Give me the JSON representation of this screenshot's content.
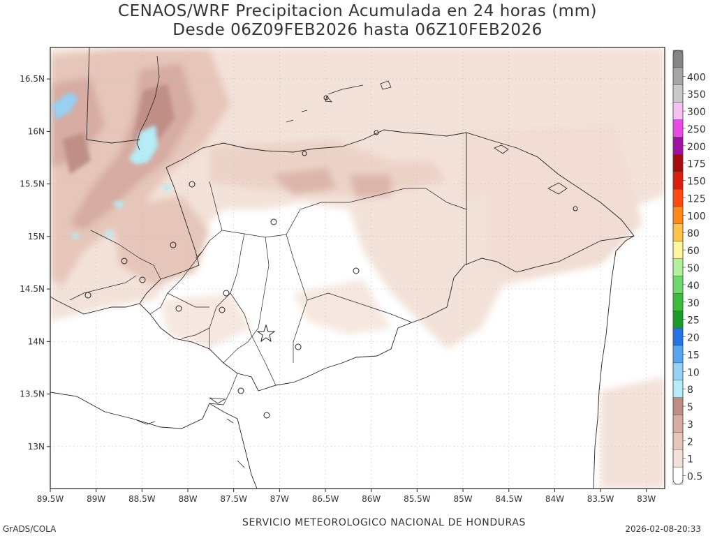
{
  "header": {
    "title_line1": "CENAOS/WRF Precipitacion Acumulada en 24 horas (mm)",
    "title_line2": "Desde 06Z09FEB2026 hasta 06Z10FEB2026"
  },
  "footer": {
    "left": "GrADS/COLA",
    "center": "SERVICIO METEOROLOGICO NACIONAL DE HONDURAS",
    "right": "2026-02-08-20:33"
  },
  "chart_data": {
    "type": "heatmap",
    "title": "CENAOS/WRF Precipitacion Acumulada en 24 horas (mm)",
    "subtitle": "Desde 06Z09FEB2026 hasta 06Z10FEB2026",
    "xlim": [
      -89.5,
      -82.8
    ],
    "ylim": [
      12.6,
      16.8
    ],
    "x_ticks": [
      "89.5W",
      "89W",
      "88.5W",
      "88W",
      "87.5W",
      "87W",
      "86.5W",
      "86W",
      "85.5W",
      "85W",
      "84.5W",
      "84W",
      "83.5W",
      "83W"
    ],
    "y_ticks": [
      "13N",
      "13.5N",
      "14N",
      "14.5N",
      "15N",
      "15.5N",
      "16N",
      "16.5N"
    ],
    "grid": true,
    "legend_position": "right",
    "colorbar": [
      {
        "value": "0.5",
        "color": "#ffffff"
      },
      {
        "value": "1",
        "color": "#f3e2d9"
      },
      {
        "value": "2",
        "color": "#e6c6ba"
      },
      {
        "value": "3",
        "color": "#d6aca3"
      },
      {
        "value": "5",
        "color": "#bf8f86"
      },
      {
        "value": "8",
        "color": "#b5ecf5"
      },
      {
        "value": "10",
        "color": "#96d0f2"
      },
      {
        "value": "15",
        "color": "#55a7f0"
      },
      {
        "value": "20",
        "color": "#2474e3"
      },
      {
        "value": "25",
        "color": "#1b9a29"
      },
      {
        "value": "30",
        "color": "#3cbd3c"
      },
      {
        "value": "40",
        "color": "#6fd96f"
      },
      {
        "value": "50",
        "color": "#b5f0a0"
      },
      {
        "value": "60",
        "color": "#fff59d"
      },
      {
        "value": "80",
        "color": "#ffc34d"
      },
      {
        "value": "100",
        "color": "#ff8a1a"
      },
      {
        "value": "125",
        "color": "#ff4a14"
      },
      {
        "value": "150",
        "color": "#d91f0f"
      },
      {
        "value": "175",
        "color": "#a30d0d"
      },
      {
        "value": "200",
        "color": "#9e13a3"
      },
      {
        "value": "250",
        "color": "#e84be8"
      },
      {
        "value": "300",
        "color": "#f7c2f3"
      },
      {
        "value": "350",
        "color": "#c9c9c9"
      },
      {
        "value": "400",
        "color": "#a6a6a6"
      },
      {
        "value": "",
        "color": "#858585"
      }
    ]
  }
}
